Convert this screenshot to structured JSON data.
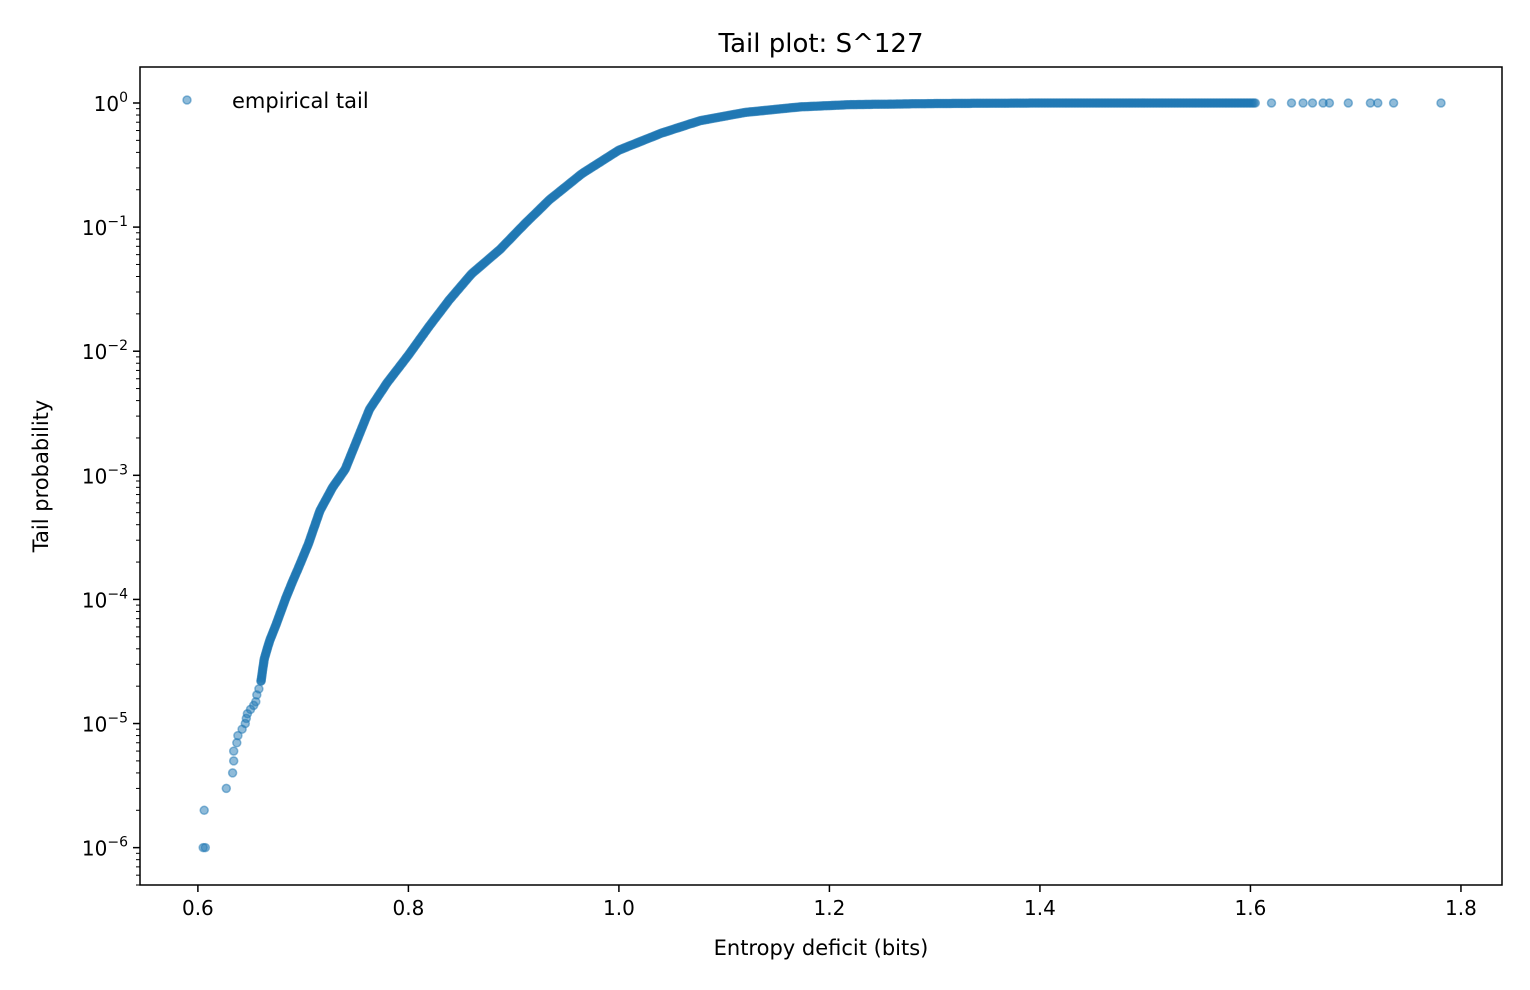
{
  "chart_data": {
    "type": "scatter",
    "title": "Tail plot: S^127",
    "xlabel": "Entropy deficit (bits)",
    "ylabel": "Tail probability",
    "xscale": "linear",
    "yscale": "log",
    "xlim": [
      0.545,
      1.839
    ],
    "ylim": [
      5e-07,
      1.95
    ],
    "xticks": [
      0.6,
      0.8,
      1.0,
      1.2,
      1.4,
      1.6,
      1.8
    ],
    "xtick_labels": [
      "0.6",
      "0.8",
      "1.0",
      "1.2",
      "1.4",
      "1.6",
      "1.8"
    ],
    "yticks": [
      -6,
      -5,
      -4,
      -3,
      -2,
      -1,
      0
    ],
    "ytick_labels": [
      "10",
      "10",
      "10",
      "10",
      "10",
      "10",
      "10"
    ],
    "ytick_exponents": [
      "−6",
      "−5",
      "−4",
      "−3",
      "−2",
      "−1",
      "0"
    ],
    "grid": false,
    "legend": {
      "placement": "top-left",
      "entries": [
        "empirical tail"
      ]
    },
    "series": [
      {
        "name": "empirical tail",
        "color": "#1f77b4",
        "alpha": 0.5,
        "isolated_points": [
          [
            0.605,
            1e-06
          ],
          [
            0.607,
            1e-06
          ],
          [
            0.606,
            2e-06
          ],
          [
            0.627,
            3e-06
          ],
          [
            0.633,
            4e-06
          ],
          [
            0.634,
            5e-06
          ],
          [
            0.634,
            6e-06
          ],
          [
            0.637,
            7e-06
          ],
          [
            0.638,
            8e-06
          ],
          [
            0.642,
            9e-06
          ],
          [
            0.645,
            1e-05
          ],
          [
            0.646,
            1.1e-05
          ],
          [
            0.647,
            1.2e-05
          ],
          [
            0.65,
            1.3e-05
          ],
          [
            0.653,
            1.4e-05
          ],
          [
            0.655,
            1.5e-05
          ],
          [
            0.656,
            1.7e-05
          ],
          [
            0.658,
            1.9e-05
          ],
          [
            0.66,
            2.2e-05
          ],
          [
            1.62,
            1.0
          ],
          [
            1.639,
            1.0
          ],
          [
            1.65,
            1.0
          ],
          [
            1.659,
            1.0
          ],
          [
            1.669,
            1.0
          ],
          [
            1.675,
            1.0
          ],
          [
            1.693,
            1.0
          ],
          [
            1.714,
            1.0
          ],
          [
            1.721,
            1.0
          ],
          [
            1.736,
            1.0
          ],
          [
            1.781,
            1.0
          ]
        ],
        "dense_curve": [
          [
            0.66,
            2.2e-05
          ],
          [
            0.663,
            3.3e-05
          ],
          [
            0.668,
            4.6e-05
          ],
          [
            0.675,
            6.5e-05
          ],
          [
            0.683,
            0.0001
          ],
          [
            0.69,
            0.00014
          ],
          [
            0.695,
            0.000175
          ],
          [
            0.705,
            0.00028
          ],
          [
            0.716,
            0.00052
          ],
          [
            0.728,
            0.0008
          ],
          [
            0.74,
            0.00112
          ],
          [
            0.752,
            0.002
          ],
          [
            0.763,
            0.0034
          ],
          [
            0.78,
            0.0056
          ],
          [
            0.8,
            0.0093
          ],
          [
            0.82,
            0.016
          ],
          [
            0.839,
            0.026
          ],
          [
            0.86,
            0.042
          ],
          [
            0.887,
            0.066
          ],
          [
            0.91,
            0.105
          ],
          [
            0.934,
            0.166
          ],
          [
            0.965,
            0.27
          ],
          [
            1.0,
            0.417
          ],
          [
            1.04,
            0.57
          ],
          [
            1.077,
            0.72
          ],
          [
            1.12,
            0.84
          ],
          [
            1.172,
            0.93
          ],
          [
            1.22,
            0.97
          ],
          [
            1.3,
            0.99
          ],
          [
            1.4,
            1.0
          ],
          [
            1.606,
            1.0
          ]
        ]
      }
    ]
  }
}
